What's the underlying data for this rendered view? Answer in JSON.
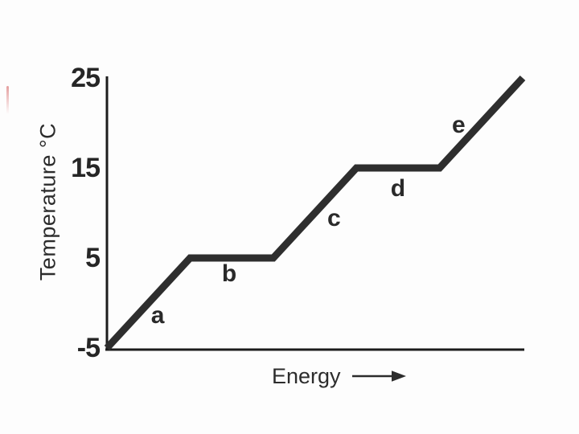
{
  "figure": {
    "background": "#fdfdfd"
  },
  "chart_data": {
    "type": "line",
    "title": "",
    "xlabel": "Energy",
    "ylabel": "Temperature °C",
    "x_axis_has_arrow": true,
    "grid": false,
    "legend": "none",
    "xlim": [
      0,
      5
    ],
    "ylim": [
      -5,
      25
    ],
    "x": [
      0,
      1,
      2,
      3,
      4,
      5
    ],
    "y": [
      -5,
      5,
      5,
      15,
      15,
      25
    ],
    "yticks": [
      25,
      15,
      5,
      -5
    ],
    "ytick_labels": [
      "25",
      "15",
      "5",
      "-5"
    ],
    "xtick_labels": [],
    "line_color": "#2e2e2e",
    "axis_color": "#1c1c1c",
    "segments": [
      {
        "label": "a",
        "x": 0.61,
        "y": -1.4
      },
      {
        "label": "b",
        "x": 1.47,
        "y": 3.2
      },
      {
        "label": "c",
        "x": 2.73,
        "y": 9.4
      },
      {
        "label": "d",
        "x": 3.5,
        "y": 12.7
      },
      {
        "label": "e",
        "x": 4.23,
        "y": 19.7
      }
    ]
  },
  "artifacts": {
    "scan_mark_color": "#e08e8e"
  }
}
